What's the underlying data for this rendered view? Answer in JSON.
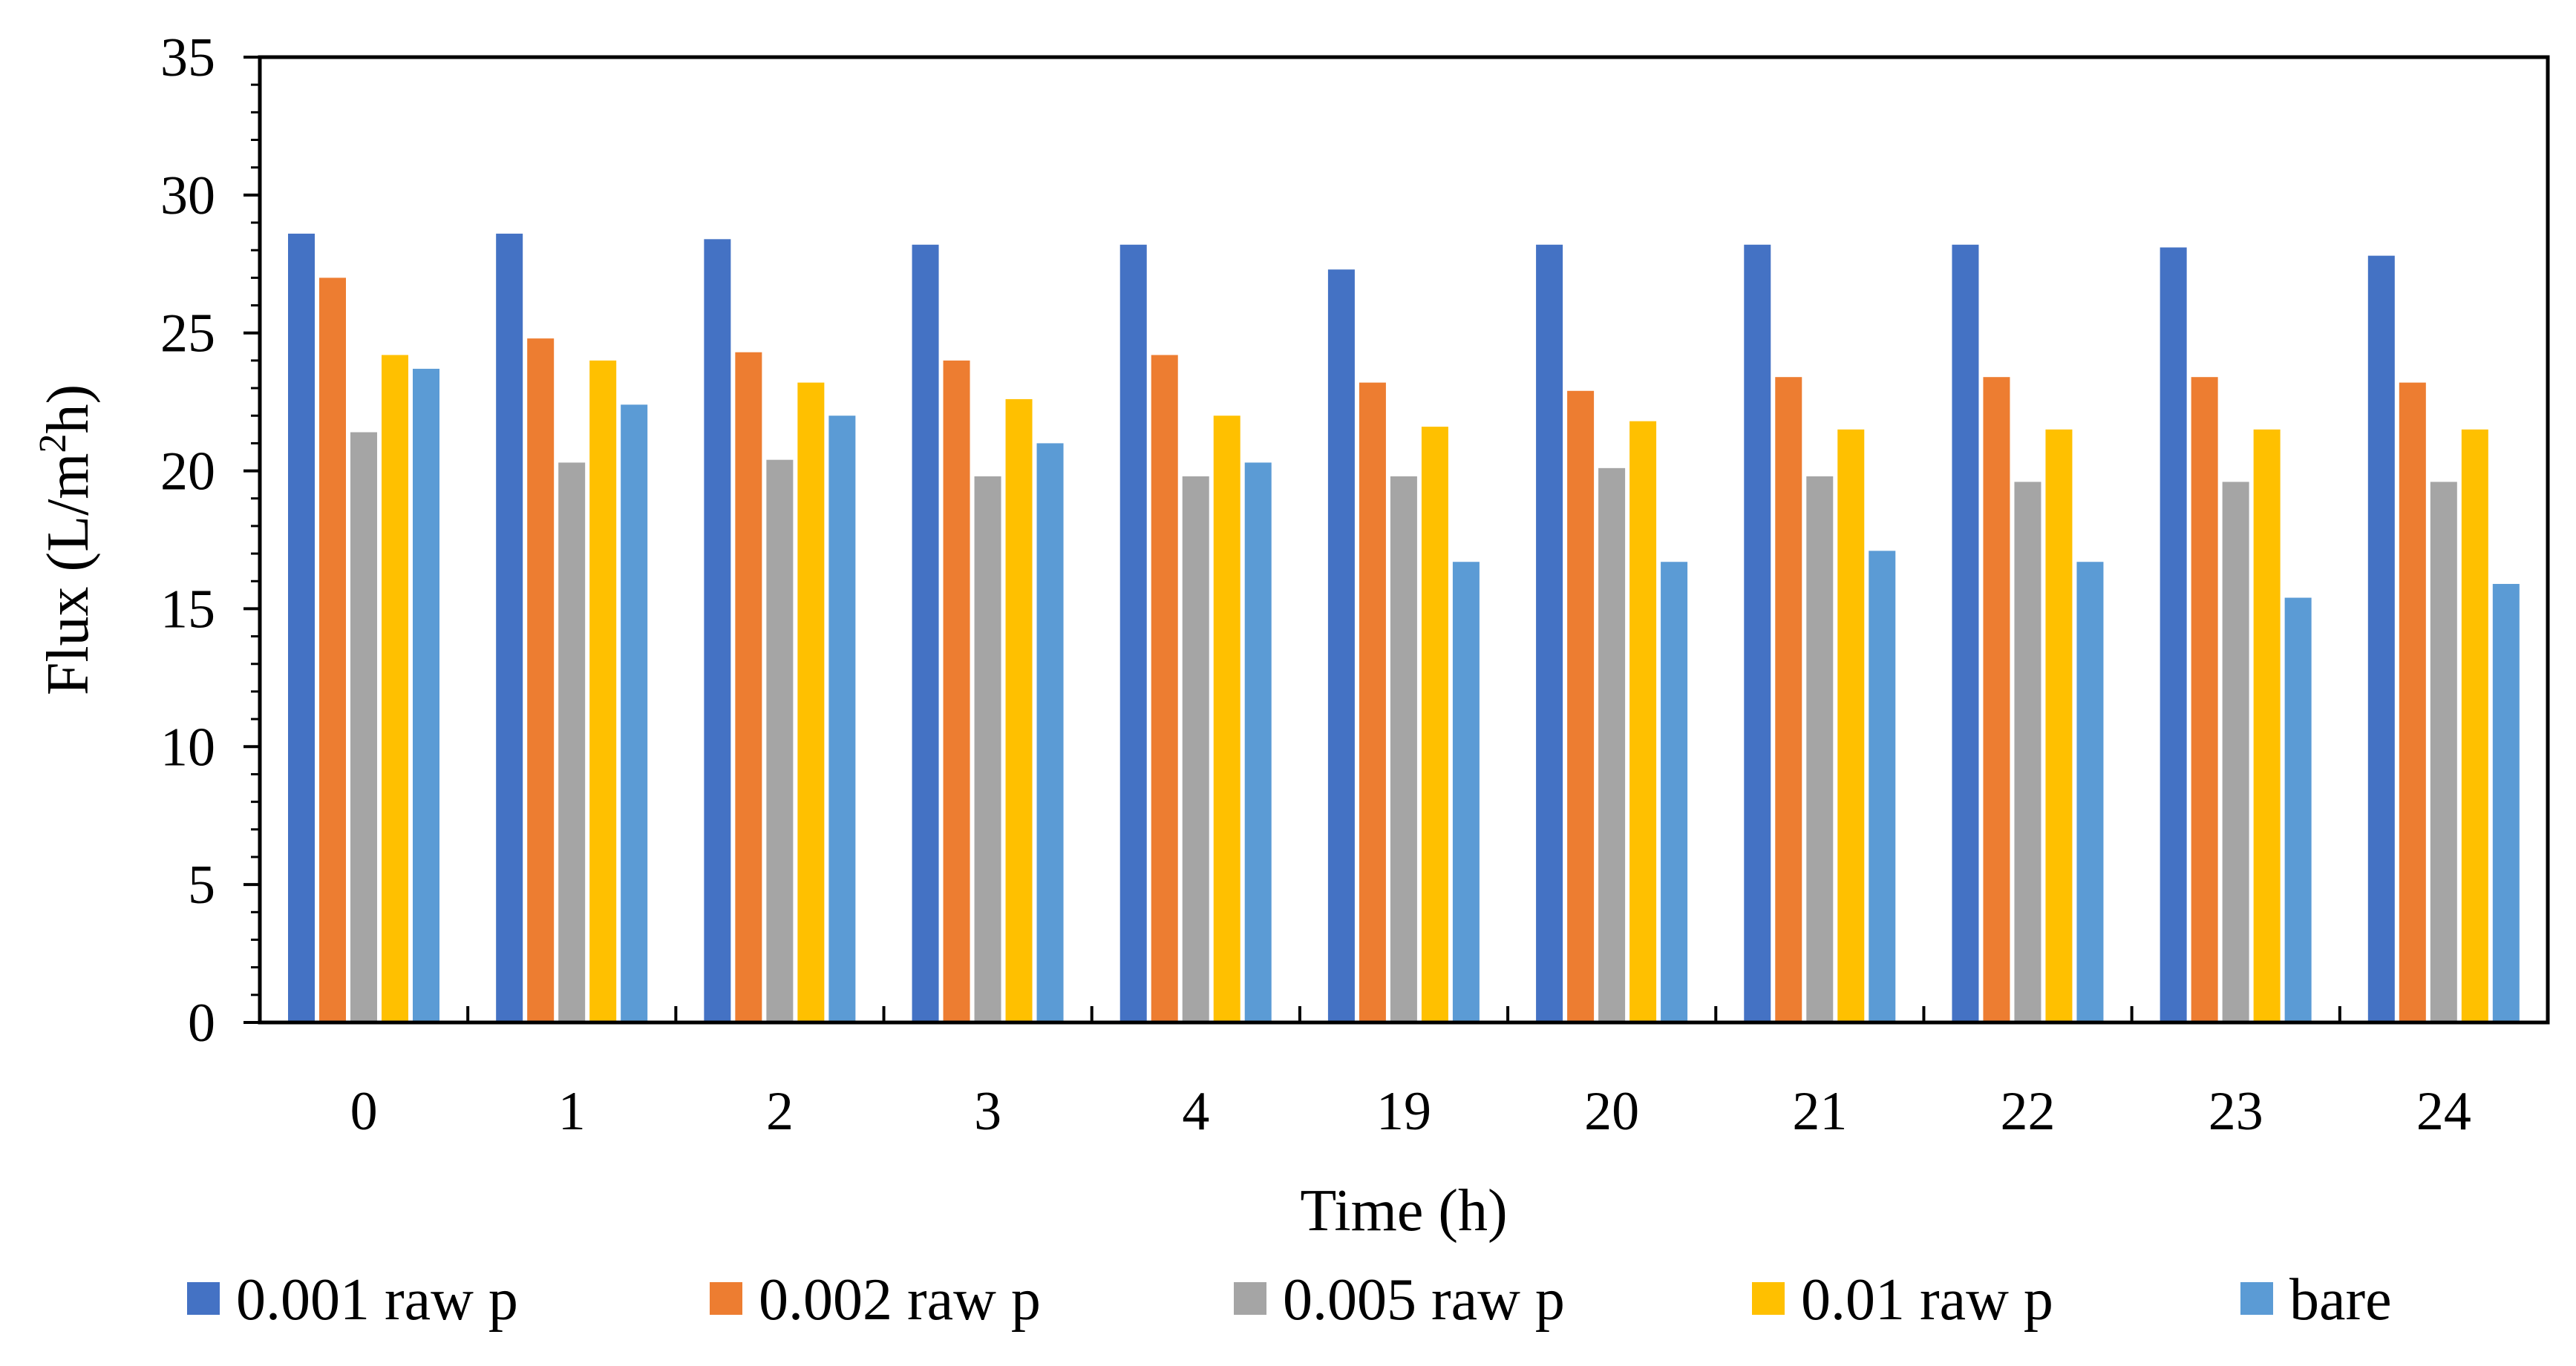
{
  "chart_data": {
    "type": "bar",
    "title": "",
    "xlabel": "Time (h)",
    "ylabel_prefix": "Flux (L/m",
    "ylabel_sup": "2",
    "ylabel_suffix": "h)",
    "ylim": [
      0,
      35
    ],
    "yticks": [
      0,
      5,
      10,
      15,
      20,
      25,
      30,
      35
    ],
    "y_minor_step": 1,
    "grid": false,
    "legend_position": "bottom",
    "categories": [
      "0",
      "1",
      "2",
      "3",
      "4",
      "19",
      "20",
      "21",
      "22",
      "23",
      "24"
    ],
    "series": [
      {
        "name": "0.001 raw p",
        "color": "#4472C4",
        "values": [
          28.6,
          28.6,
          28.4,
          28.2,
          28.2,
          27.3,
          28.2,
          28.2,
          28.2,
          28.1,
          27.8
        ]
      },
      {
        "name": "0.002 raw p",
        "color": "#ED7D31",
        "values": [
          27.0,
          24.8,
          24.3,
          24.0,
          24.2,
          23.2,
          22.9,
          23.4,
          23.4,
          23.4,
          23.2
        ]
      },
      {
        "name": "0.005 raw p",
        "color": "#A5A5A5",
        "values": [
          21.4,
          20.3,
          20.4,
          19.8,
          19.8,
          19.8,
          20.1,
          19.8,
          19.6,
          19.6,
          19.6
        ]
      },
      {
        "name": "0.01 raw p",
        "color": "#FFC000",
        "values": [
          24.2,
          24.0,
          23.2,
          22.6,
          22.0,
          21.6,
          21.8,
          21.5,
          21.5,
          21.5,
          21.5
        ]
      },
      {
        "name": "bare",
        "color": "#5B9BD5",
        "values": [
          23.7,
          22.4,
          22.0,
          21.0,
          20.3,
          16.7,
          16.7,
          17.1,
          16.7,
          15.4,
          15.9
        ]
      }
    ]
  }
}
